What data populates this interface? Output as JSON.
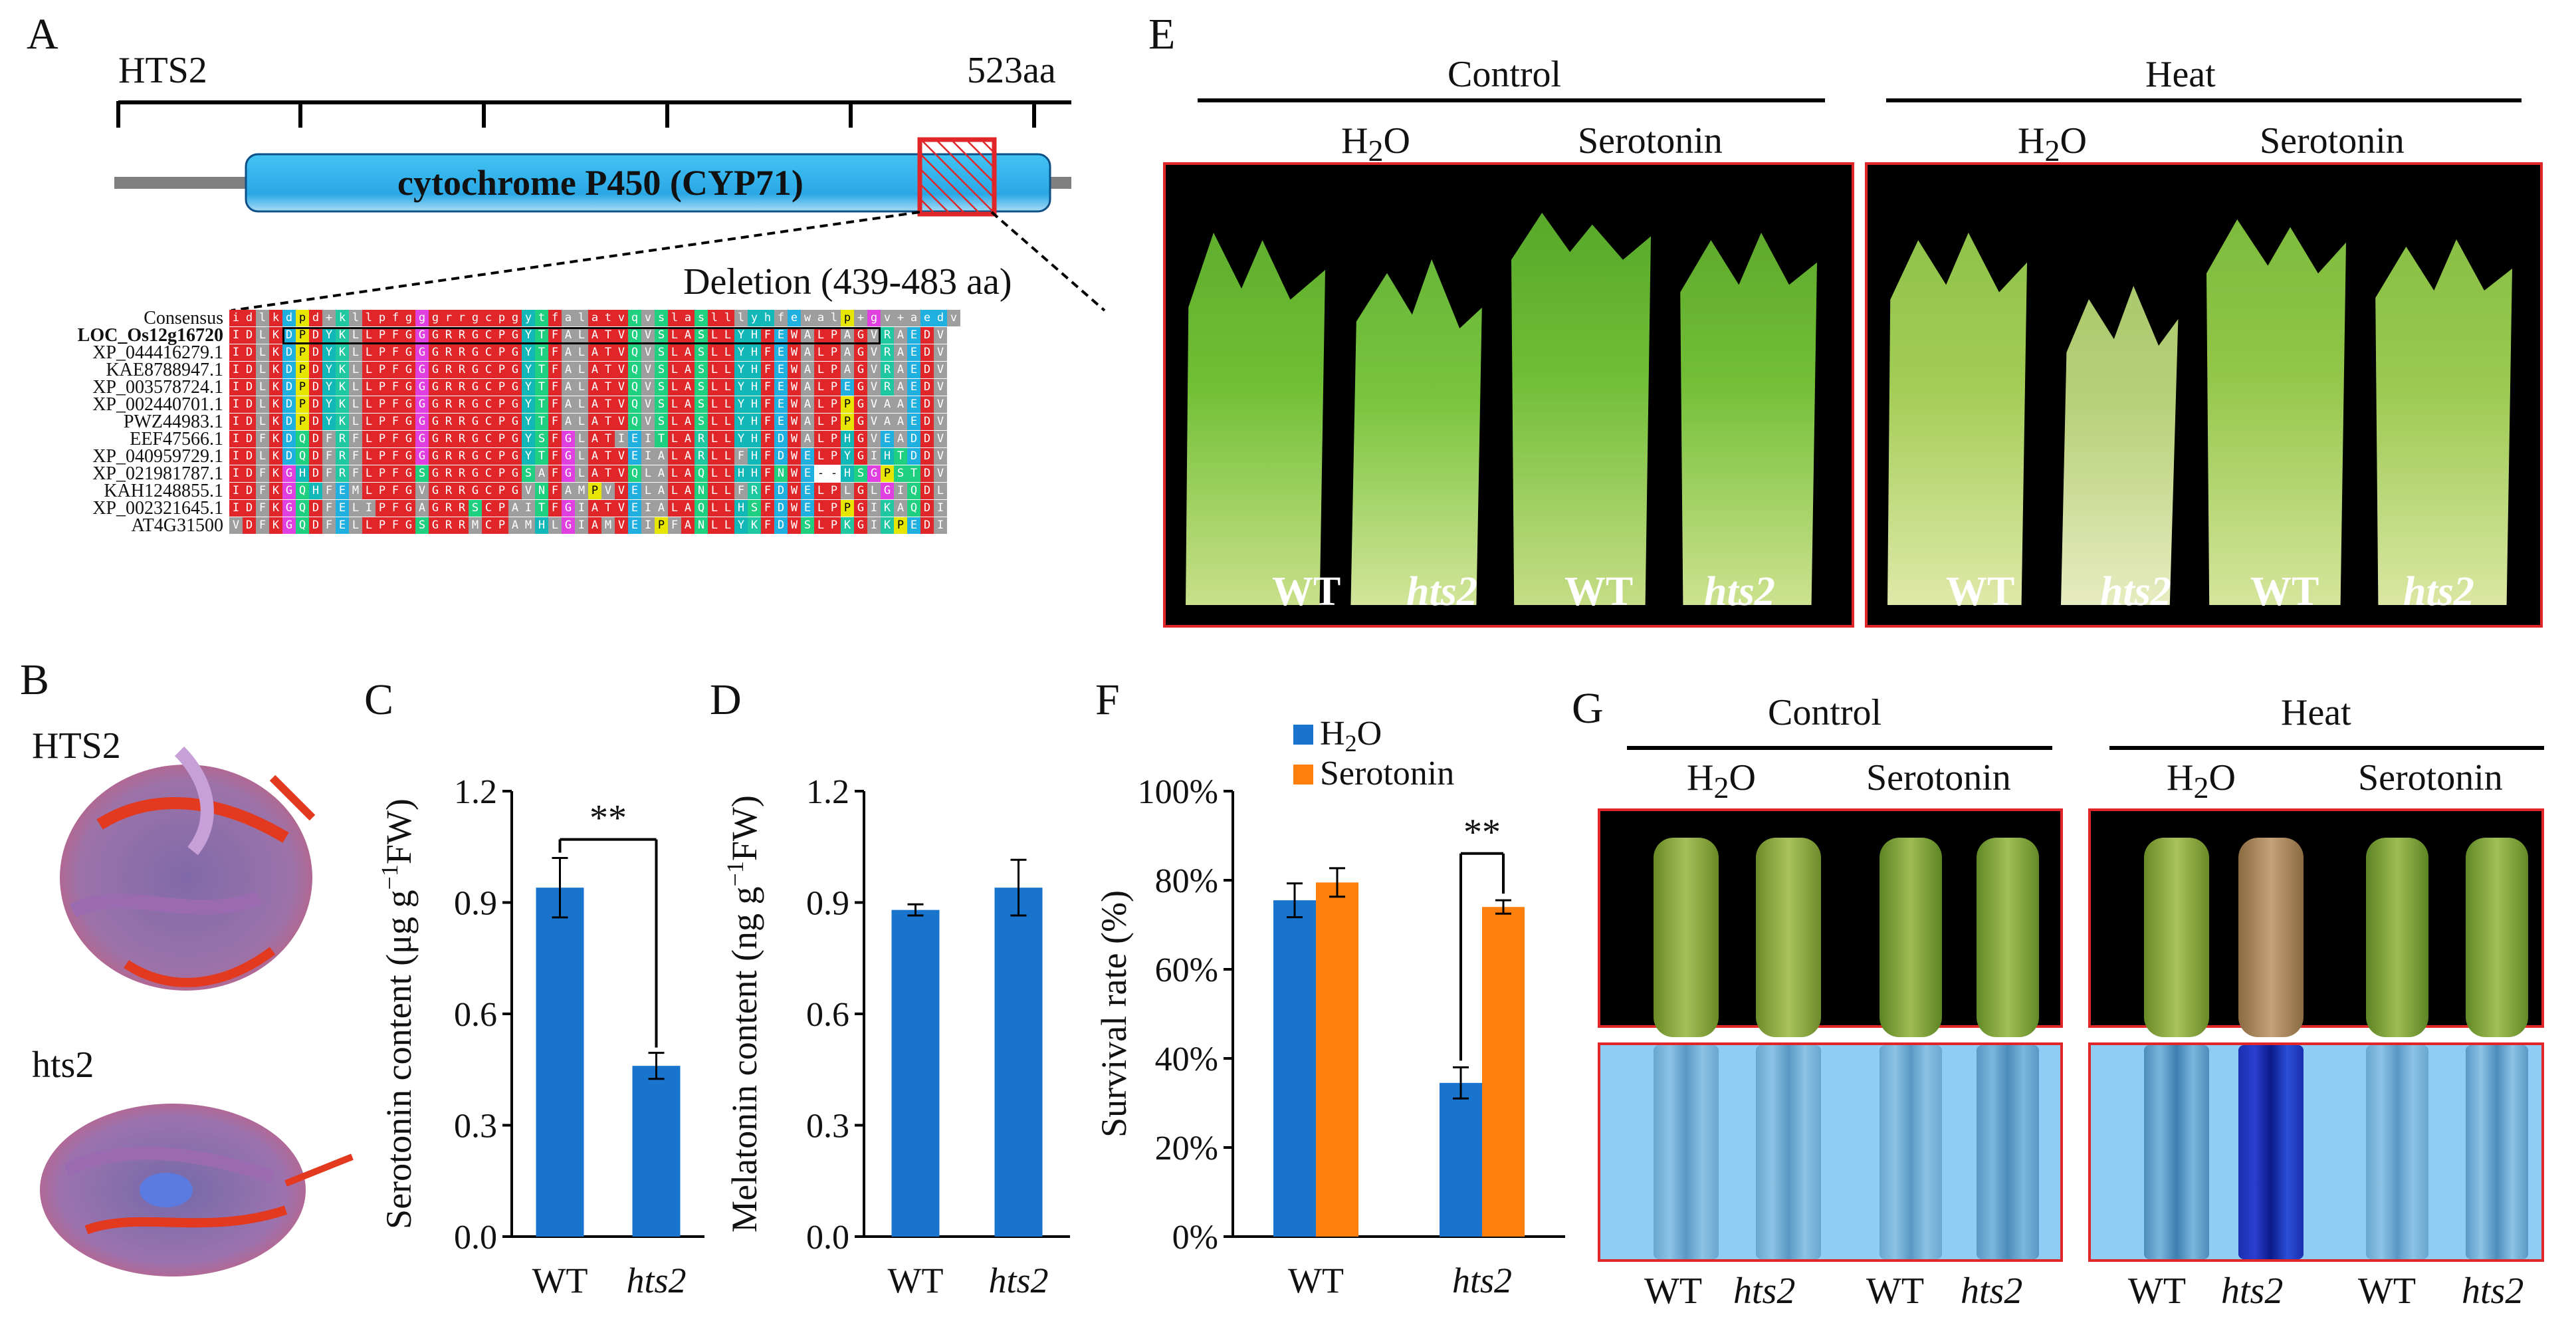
{
  "panels": {
    "A": "A",
    "B": "B",
    "C": "C",
    "D": "D",
    "E": "E",
    "F": "F",
    "G": "G"
  },
  "panelA": {
    "protein": "HTS2",
    "length": "523aa",
    "domain": "cytochrome P450 (CYP71)",
    "deletion": "Deletion (439-483 aa)",
    "alignment": {
      "names": [
        "Consensus",
        "LOC_Os12g16720",
        "XP_044416279.1",
        "KAE8788947.1",
        "XP_003578724.1",
        "XP_002440701.1",
        "PWZ44983.1",
        "EEF47566.1",
        "XP_040959729.1",
        "XP_021981787.1",
        "KAH1248855.1",
        "XP_002321645.1",
        "AT4G31500"
      ],
      "sequences": [
        "idlkdpd+kllpfgggrrgcpgytfalatvqvslaslllyhfewalp+gv+aedv",
        "IDLKDPDYKLLPFGGGRRGCPGYTFALATVQVSLASLLYHFEWALPAGVRAEDV",
        "IDLKDPDYKLLPFGGGRRGCPGYTFALATVQVSLASLLYHFEWALPAGVRAEDV",
        "IDLKDPDYKLLPFGGGRRGCPGYTFALATVQVSLASLLYHFEWALPAGVRAEDV",
        "IDLKDPDYKLLPFGGGRRGCPGYTFALATVQVSLASLLYHFEWALPEGVRAEDV",
        "IDLKDPDYKLLPFGGGRRGCPGYTFALATVQVSLASLLYHFEWALPPGVAAEDV",
        "IDLKDPDYKLLPFGGGRRGCPGYTFALATVQVSLASLLYHFEWALPPGVAAEDV",
        "IDFKDQDFRFLPFGGGRRGCPGYSFGLATIEITLARLLYHFDWALPHGVEADDV",
        "IDLKDQDFRFLPFGGGRRGCPGYTFGLATVEIALARLLFHFDWELPYGIHTDDV",
        "IDFKGHDFRFLPFGSGRRGCPGSAFGLATVQLALAQLLHHFNWE--HSGPSTDV",
        "IDFKGQHFEMLPFGVGRRGCPGVNFAMPVVELALANLLFRFDWELPLGLGIQDL",
        "IDFKGQDFELIPFGAGRRSCPAITFGIATVEIALAQLLHSFDWELPPGIKAQDI",
        "VDFKGQDFELLPFGSGRRMCPAMHLGIAMVEIPFANLLYKFDWSLPKGIKPEDI"
      ]
    }
  },
  "panelB": {
    "label1": "HTS2",
    "label2": "hts2"
  },
  "panelC": {
    "ylabel_main": "Serotonin content (μg g",
    "ylabel_sup": "−1",
    "ylabel_end": "FW)",
    "sig": "**"
  },
  "panelD": {
    "ylabel_main": "Melatonin content (ng g",
    "ylabel_sup": "−1",
    "ylabel_end": "FW)"
  },
  "panelF": {
    "ylabel": "Survival rate (%)",
    "sig": "**"
  },
  "panelE": {
    "control": "Control",
    "heat": "Heat",
    "h2o": "H",
    "h2o_sub": "2",
    "h2o_end": "O",
    "serotonin": "Serotonin",
    "wt": "WT",
    "mut": "hts2"
  },
  "panelG": {
    "control": "Control",
    "heat": "Heat",
    "h2o": "H",
    "h2o_sub": "2",
    "h2o_end": "O",
    "serotonin": "Serotonin",
    "wt": "WT",
    "mut": "hts2"
  },
  "colors": {
    "bar_blue": "#1874cd",
    "bar_orange": "#ff7f0e",
    "frame_red": "#e1262a",
    "domain_blue": "#2bb3ea"
  },
  "chart_data": [
    {
      "id": "C",
      "type": "bar",
      "categories": [
        "WT",
        "hts2"
      ],
      "values": [
        0.94,
        0.46
      ],
      "errors": [
        0.08,
        0.035
      ],
      "ylim": [
        0,
        1.2
      ],
      "yticks": [
        "0.0",
        "0.3",
        "0.6",
        "0.9",
        "1.2"
      ],
      "ylabel": "Serotonin content (μg g−1 FW)",
      "annotation": "**"
    },
    {
      "id": "D",
      "type": "bar",
      "categories": [
        "WT",
        "hts2"
      ],
      "values": [
        0.88,
        0.94
      ],
      "errors": [
        0.015,
        0.075
      ],
      "ylim": [
        0,
        1.2
      ],
      "yticks": [
        "0.0",
        "0.3",
        "0.6",
        "0.9",
        "1.2"
      ],
      "ylabel": "Melatonin content (ng g−1 FW)"
    },
    {
      "id": "F",
      "type": "bar",
      "categories": [
        "WT",
        "hts2"
      ],
      "series": [
        {
          "name": "H2O",
          "values": [
            75.5,
            34.5
          ],
          "errors": [
            3.8,
            3.5
          ]
        },
        {
          "name": "Serotonin",
          "values": [
            79.5,
            74
          ],
          "errors": [
            3.2,
            1.5
          ]
        }
      ],
      "ylim": [
        0,
        100
      ],
      "yticks": [
        "0%",
        "20%",
        "40%",
        "60%",
        "80%",
        "100%"
      ],
      "ylabel": "Survival rate (%)",
      "legend": [
        "H2O",
        "Serotonin"
      ],
      "annotation": "**"
    }
  ]
}
